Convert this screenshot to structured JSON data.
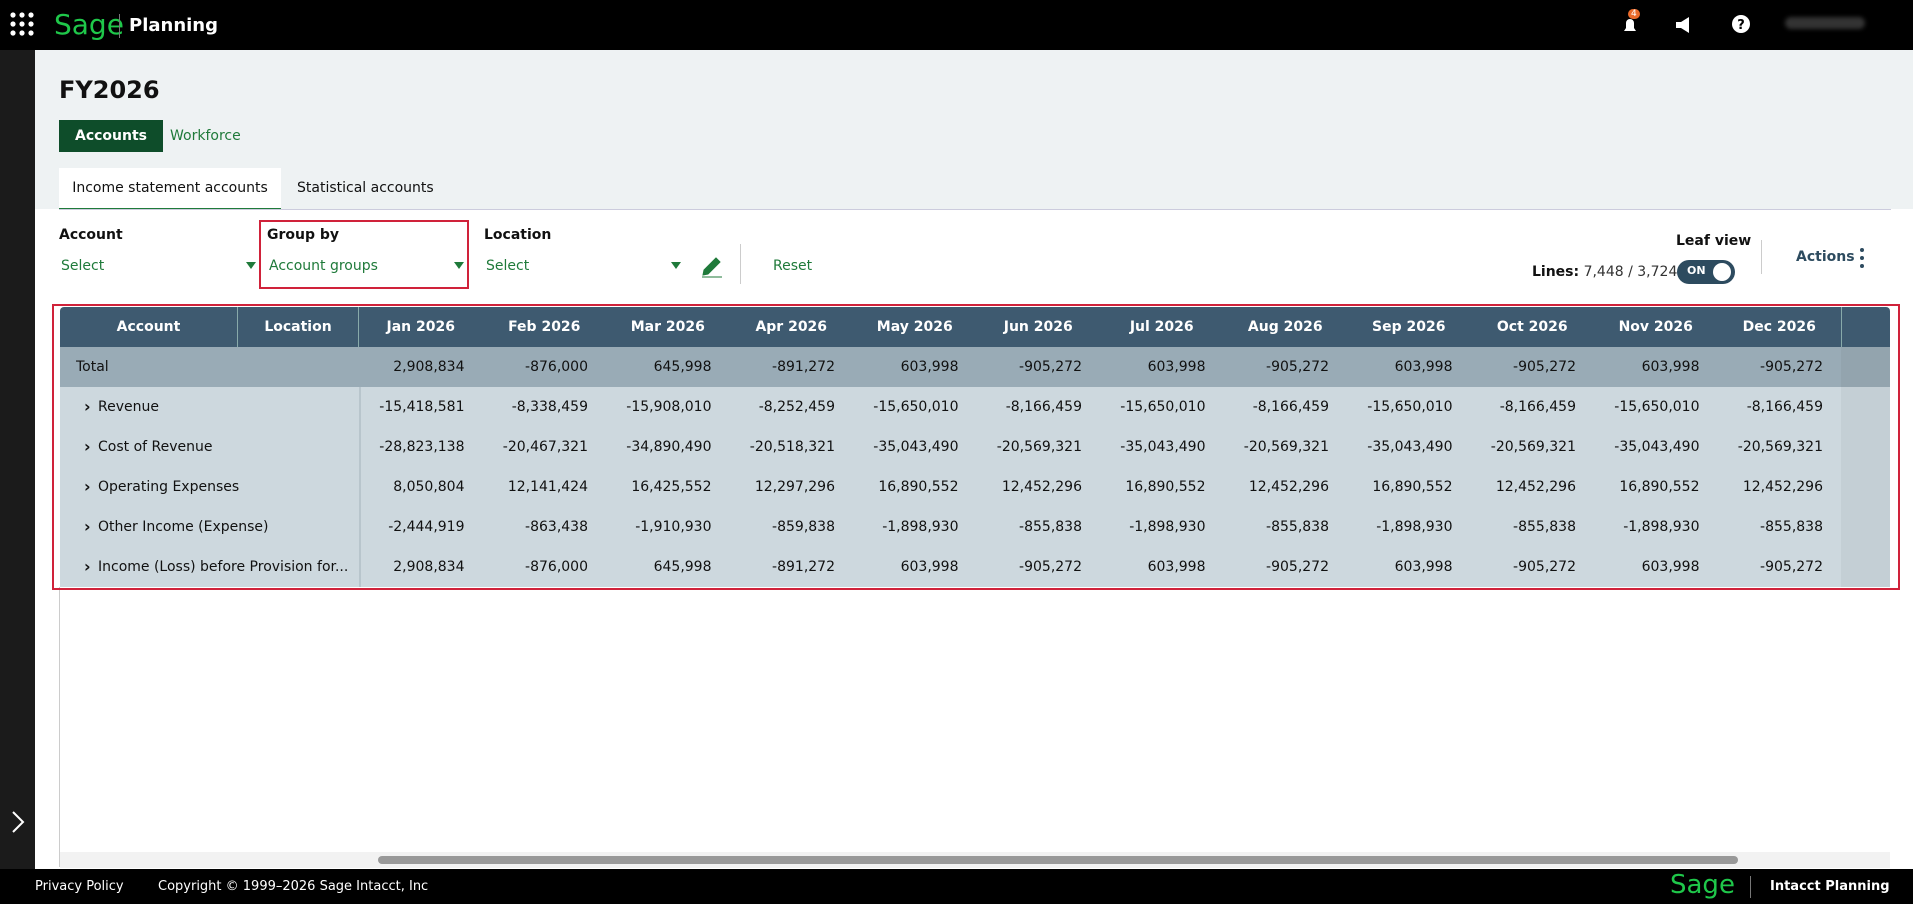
{
  "header": {
    "logo": "Sage",
    "app": "Planning",
    "badge": "4"
  },
  "page": {
    "title": "FY2026",
    "tabs": [
      "Accounts",
      "Workforce"
    ],
    "subtabs": [
      "Income statement accounts",
      "Statistical accounts"
    ]
  },
  "filters": {
    "account_label": "Account",
    "account_value": "Select",
    "group_label": "Group by",
    "group_value": "Account groups",
    "location_label": "Location",
    "location_value": "Select",
    "reset": "Reset",
    "leaf_label": "Leaf view",
    "leaf_state": "ON",
    "lines_label": "Lines:",
    "lines_value": "7,448 / 3,724",
    "actions": "Actions"
  },
  "table": {
    "account_header": "Account",
    "location_header": "Location",
    "columns": [
      "Jan 2026",
      "Feb 2026",
      "Mar 2026",
      "Apr 2026",
      "May 2026",
      "Jun 2026",
      "Jul 2026",
      "Aug 2026",
      "Sep 2026",
      "Oct 2026",
      "Nov 2026",
      "Dec 2026"
    ],
    "total": {
      "label": "Total",
      "values": [
        "2,908,834",
        "-876,000",
        "645,998",
        "-891,272",
        "603,998",
        "-905,272",
        "603,998",
        "-905,272",
        "603,998",
        "-905,272",
        "603,998",
        "-905,272"
      ]
    },
    "rows": [
      {
        "label": "Revenue",
        "values": [
          "-15,418,581",
          "-8,338,459",
          "-15,908,010",
          "-8,252,459",
          "-15,650,010",
          "-8,166,459",
          "-15,650,010",
          "-8,166,459",
          "-15,650,010",
          "-8,166,459",
          "-15,650,010",
          "-8,166,459"
        ]
      },
      {
        "label": "Cost of Revenue",
        "values": [
          "-28,823,138",
          "-20,467,321",
          "-34,890,490",
          "-20,518,321",
          "-35,043,490",
          "-20,569,321",
          "-35,043,490",
          "-20,569,321",
          "-35,043,490",
          "-20,569,321",
          "-35,043,490",
          "-20,569,321"
        ]
      },
      {
        "label": "Operating Expenses",
        "values": [
          "8,050,804",
          "12,141,424",
          "16,425,552",
          "12,297,296",
          "16,890,552",
          "12,452,296",
          "16,890,552",
          "12,452,296",
          "16,890,552",
          "12,452,296",
          "16,890,552",
          "12,452,296"
        ]
      },
      {
        "label": "Other Income (Expense)",
        "values": [
          "-2,444,919",
          "-863,438",
          "-1,910,930",
          "-859,838",
          "-1,898,930",
          "-855,838",
          "-1,898,930",
          "-855,838",
          "-1,898,930",
          "-855,838",
          "-1,898,930",
          "-855,838"
        ]
      },
      {
        "label": "Income (Loss) before Provision for...",
        "values": [
          "2,908,834",
          "-876,000",
          "645,998",
          "-891,272",
          "603,998",
          "-905,272",
          "603,998",
          "-905,272",
          "603,998",
          "-905,272",
          "603,998",
          "-905,272"
        ]
      }
    ]
  },
  "footer": {
    "privacy": "Privacy Policy",
    "copyright": "Copyright © 1999–2026 Sage Intacct, Inc",
    "logo": "Sage",
    "product": "Intacct Planning"
  }
}
